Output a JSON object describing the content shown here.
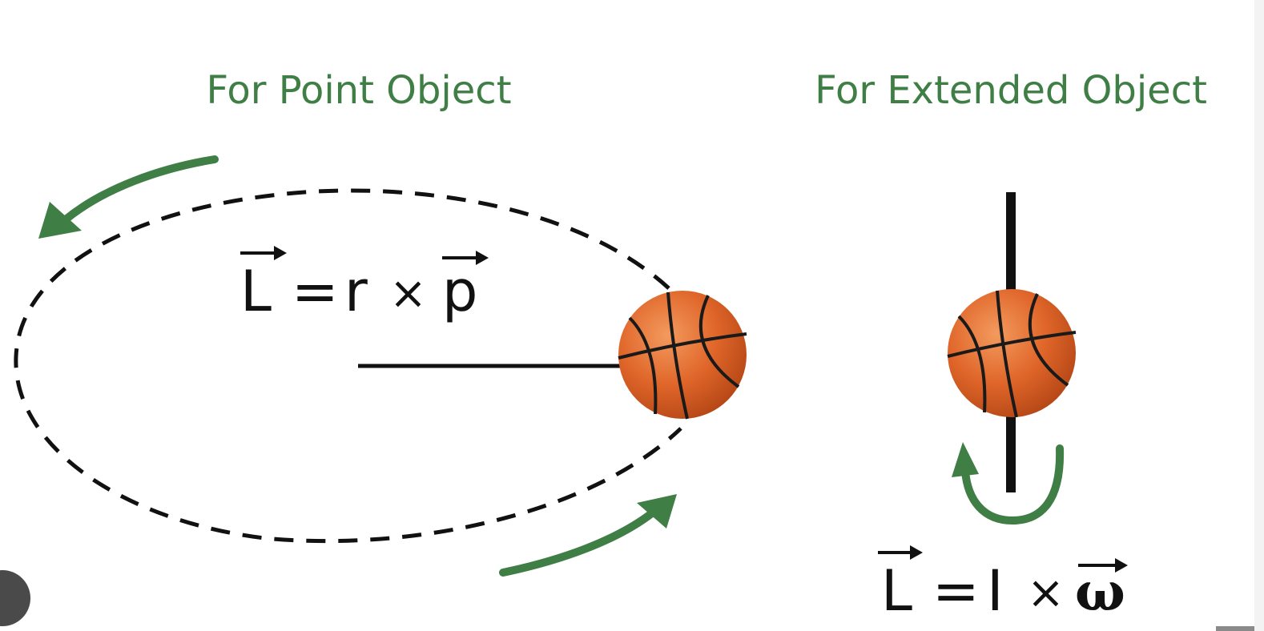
{
  "diagram": {
    "left_panel": {
      "title": "For Point Object",
      "equation": {
        "lhs": "L",
        "equals": "=",
        "r": "r",
        "times": "×",
        "p": "p"
      }
    },
    "right_panel": {
      "title": "For Extended Object",
      "equation": {
        "lhs": "L",
        "equals": "=",
        "I": "I",
        "times": "×",
        "omega": "ω"
      }
    },
    "colors": {
      "arrow_green": "#3f7e45",
      "title_green": "#3f7e45",
      "ball_orange": "#e0662a",
      "ball_seams": "#1a1a1a",
      "line_black": "#111111"
    },
    "icons": [
      "basketball-icon",
      "curved-arrow-icon",
      "vector-arrow-icon"
    ]
  }
}
